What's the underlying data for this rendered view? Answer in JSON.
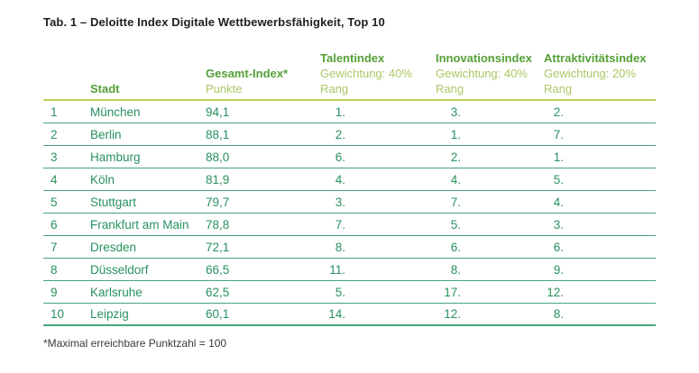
{
  "title": "Tab. 1 – Deloitte Index Digitale Wettbewerbsfähigkeit, Top 10",
  "footnote": "*Maximal erreichbare Punktzahl = 100",
  "colors": {
    "green-bold": "#55a037",
    "green-light": "#aac864",
    "rule-yellow": "#bcd05e",
    "body-green": "#28915f",
    "row-line": "#46a578",
    "title-color": "#1f1f1f",
    "footnote-color": "#3a3a3a"
  },
  "table": {
    "columns": {
      "stadt": {
        "name": "Stadt"
      },
      "gesamt": {
        "name": "Gesamt-Index*",
        "sub1": "Punkte"
      },
      "talent": {
        "name": "Talentindex",
        "sub1": "Gewichtung: 40%",
        "sub2": "Rang"
      },
      "innovation": {
        "name": "Innovationsindex",
        "sub1": "Gewichtung: 40%",
        "sub2": "Rang"
      },
      "attraktivitaet": {
        "name": "Attraktivitätsindex",
        "sub1": "Gewichtung: 20%",
        "sub2": "Rang"
      }
    },
    "rows": [
      {
        "rank": "1",
        "stadt": "München",
        "gesamt": "94,1",
        "talent": "1.",
        "innovation": "3.",
        "attraktivitaet": "2."
      },
      {
        "rank": "2",
        "stadt": "Berlin",
        "gesamt": "88,1",
        "talent": "2.",
        "innovation": "1.",
        "attraktivitaet": "7."
      },
      {
        "rank": "3",
        "stadt": "Hamburg",
        "gesamt": "88,0",
        "talent": "6.",
        "innovation": "2.",
        "attraktivitaet": "1."
      },
      {
        "rank": "4",
        "stadt": "Köln",
        "gesamt": "81,9",
        "talent": "4.",
        "innovation": "4.",
        "attraktivitaet": "5."
      },
      {
        "rank": "5",
        "stadt": "Stuttgart",
        "gesamt": "79,7",
        "talent": "3.",
        "innovation": "7.",
        "attraktivitaet": "4."
      },
      {
        "rank": "6",
        "stadt": "Frankfurt am Main",
        "gesamt": "78,8",
        "talent": "7.",
        "innovation": "5.",
        "attraktivitaet": "3."
      },
      {
        "rank": "7",
        "stadt": "Dresden",
        "gesamt": "72,1",
        "talent": "8.",
        "innovation": "6.",
        "attraktivitaet": "6."
      },
      {
        "rank": "8",
        "stadt": "Düsseldorf",
        "gesamt": "66,5",
        "talent": "11.",
        "innovation": "8.",
        "attraktivitaet": "9."
      },
      {
        "rank": "9",
        "stadt": "Karlsruhe",
        "gesamt": "62,5",
        "talent": "5.",
        "innovation": "17.",
        "attraktivitaet": "12."
      },
      {
        "rank": "10",
        "stadt": "Leipzig",
        "gesamt": "60,1",
        "talent": "14.",
        "innovation": "12.",
        "attraktivitaet": "8."
      }
    ]
  },
  "chart_data": {
    "type": "table",
    "title": "Tab. 1 – Deloitte Index Digitale Wettbewerbsfähigkeit, Top 10",
    "columns": [
      "Rang",
      "Stadt",
      "Gesamt-Index* Punkte",
      "Talentindex Rang (Gewichtung: 40%)",
      "Innovationsindex Rang (Gewichtung: 40%)",
      "Attraktivitätsindex Rang (Gewichtung: 20%)"
    ],
    "rows": [
      [
        1,
        "München",
        94.1,
        1,
        3,
        2
      ],
      [
        2,
        "Berlin",
        88.1,
        2,
        1,
        7
      ],
      [
        3,
        "Hamburg",
        88.0,
        6,
        2,
        1
      ],
      [
        4,
        "Köln",
        81.9,
        4,
        4,
        5
      ],
      [
        5,
        "Stuttgart",
        79.7,
        3,
        7,
        4
      ],
      [
        6,
        "Frankfurt am Main",
        78.8,
        7,
        5,
        3
      ],
      [
        7,
        "Dresden",
        72.1,
        8,
        6,
        6
      ],
      [
        8,
        "Düsseldorf",
        66.5,
        11,
        8,
        9
      ],
      [
        9,
        "Karlsruhe",
        62.5,
        5,
        17,
        12
      ],
      [
        10,
        "Leipzig",
        60.1,
        14,
        12,
        8
      ]
    ],
    "footnote": "*Maximal erreichbare Punktzahl = 100"
  }
}
